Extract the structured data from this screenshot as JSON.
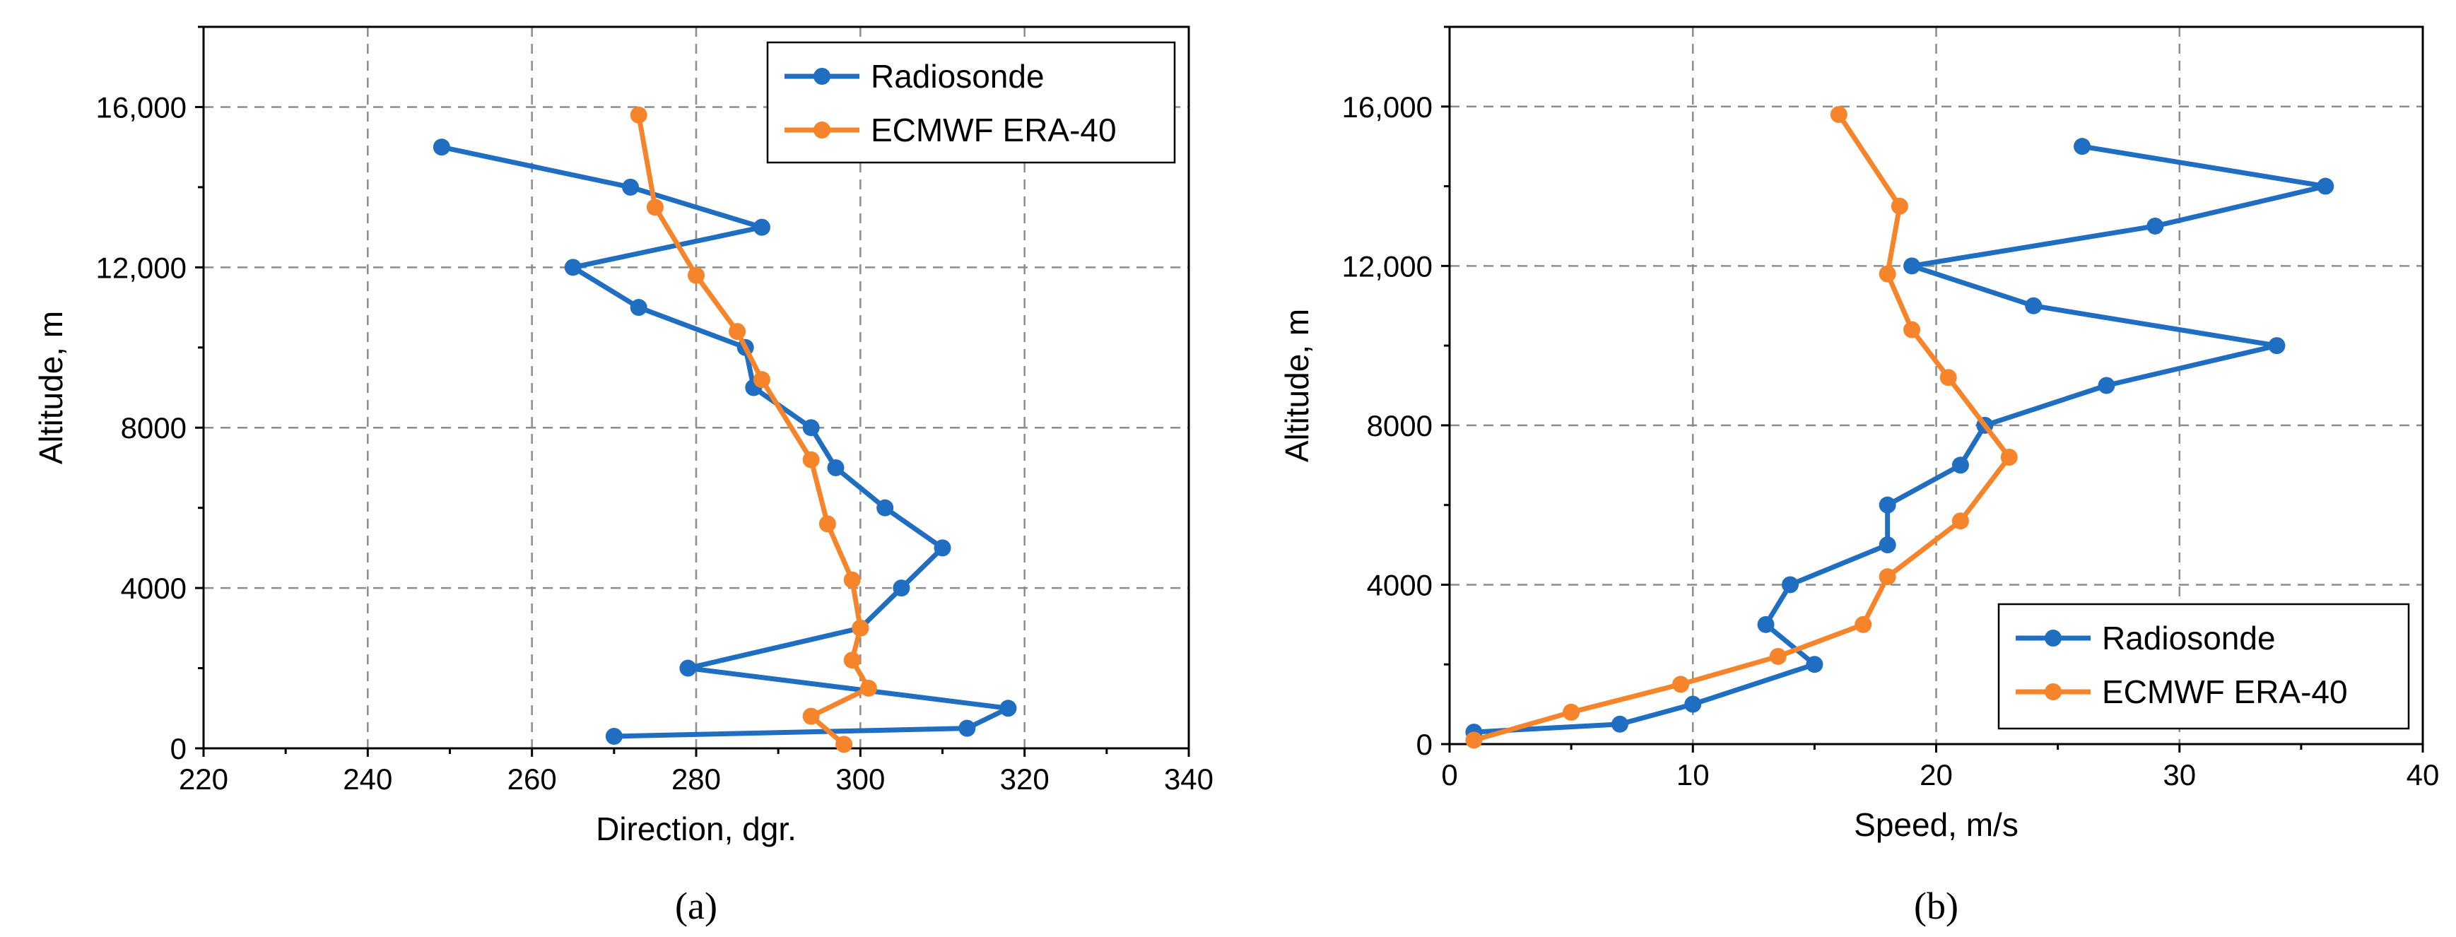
{
  "colors": {
    "radiosonde": "#1f6ec2",
    "ecmwf": "#f5842a"
  },
  "charts": [
    {
      "id": "a",
      "panel_label": "(a)",
      "chart_data": {
        "type": "line",
        "title": "",
        "xlabel": "Direction, dgr.",
        "ylabel": "Altitude, m",
        "xlim": [
          220,
          340
        ],
        "ylim": [
          0,
          18000
        ],
        "xticks": [
          220,
          240,
          260,
          280,
          300,
          320,
          340
        ],
        "xtick_labels": [
          "220",
          "240",
          "260",
          "280",
          "300",
          "320",
          "340"
        ],
        "yticks": [
          0,
          4000,
          8000,
          12000,
          16000
        ],
        "ytick_labels": [
          "0",
          "4000",
          "8000",
          "12,000",
          "16,000"
        ],
        "legend_position": "top-right",
        "series": [
          {
            "name": "Radiosonde",
            "points": [
              {
                "x": 270,
                "y": 300
              },
              {
                "x": 313,
                "y": 500
              },
              {
                "x": 318,
                "y": 1000
              },
              {
                "x": 279,
                "y": 2000
              },
              {
                "x": 300,
                "y": 3000
              },
              {
                "x": 305,
                "y": 4000
              },
              {
                "x": 310,
                "y": 5000
              },
              {
                "x": 303,
                "y": 6000
              },
              {
                "x": 297,
                "y": 7000
              },
              {
                "x": 294,
                "y": 8000
              },
              {
                "x": 287,
                "y": 9000
              },
              {
                "x": 286,
                "y": 10000
              },
              {
                "x": 273,
                "y": 11000
              },
              {
                "x": 265,
                "y": 12000
              },
              {
                "x": 288,
                "y": 13000
              },
              {
                "x": 272,
                "y": 14000
              },
              {
                "x": 249,
                "y": 15000
              }
            ]
          },
          {
            "name": "ECMWF ERA-40",
            "points": [
              {
                "x": 298,
                "y": 100
              },
              {
                "x": 294,
                "y": 800
              },
              {
                "x": 301,
                "y": 1500
              },
              {
                "x": 299,
                "y": 2200
              },
              {
                "x": 300,
                "y": 3000
              },
              {
                "x": 299,
                "y": 4200
              },
              {
                "x": 296,
                "y": 5600
              },
              {
                "x": 294,
                "y": 7200
              },
              {
                "x": 288,
                "y": 9200
              },
              {
                "x": 285,
                "y": 10400
              },
              {
                "x": 280,
                "y": 11800
              },
              {
                "x": 275,
                "y": 13500
              },
              {
                "x": 273,
                "y": 15800
              }
            ]
          }
        ]
      }
    },
    {
      "id": "b",
      "panel_label": "(b)",
      "chart_data": {
        "type": "line",
        "title": "",
        "xlabel": "Speed, m/s",
        "ylabel": "Altitude, m",
        "xlim": [
          0,
          40
        ],
        "ylim": [
          0,
          18000
        ],
        "xticks": [
          0,
          10,
          20,
          30,
          40
        ],
        "xtick_labels": [
          "0",
          "10",
          "20",
          "30",
          "40"
        ],
        "yticks": [
          0,
          4000,
          8000,
          12000,
          16000
        ],
        "ytick_labels": [
          "0",
          "4000",
          "8000",
          "12,000",
          "16,000"
        ],
        "legend_position": "bottom-right",
        "series": [
          {
            "name": "Radiosonde",
            "points": [
              {
                "x": 1,
                "y": 300
              },
              {
                "x": 7,
                "y": 500
              },
              {
                "x": 10,
                "y": 1000
              },
              {
                "x": 15,
                "y": 2000
              },
              {
                "x": 13,
                "y": 3000
              },
              {
                "x": 14,
                "y": 4000
              },
              {
                "x": 18,
                "y": 5000
              },
              {
                "x": 18,
                "y": 6000
              },
              {
                "x": 21,
                "y": 7000
              },
              {
                "x": 22,
                "y": 8000
              },
              {
                "x": 27,
                "y": 9000
              },
              {
                "x": 34,
                "y": 10000
              },
              {
                "x": 24,
                "y": 11000
              },
              {
                "x": 19,
                "y": 12000
              },
              {
                "x": 29,
                "y": 13000
              },
              {
                "x": 36,
                "y": 14000
              },
              {
                "x": 26,
                "y": 15000
              }
            ]
          },
          {
            "name": "ECMWF ERA-40",
            "points": [
              {
                "x": 1,
                "y": 100
              },
              {
                "x": 5,
                "y": 800
              },
              {
                "x": 9.5,
                "y": 1500
              },
              {
                "x": 13.5,
                "y": 2200
              },
              {
                "x": 17,
                "y": 3000
              },
              {
                "x": 18,
                "y": 4200
              },
              {
                "x": 21,
                "y": 5600
              },
              {
                "x": 23,
                "y": 7200
              },
              {
                "x": 20.5,
                "y": 9200
              },
              {
                "x": 19,
                "y": 10400
              },
              {
                "x": 18,
                "y": 11800
              },
              {
                "x": 18.5,
                "y": 13500
              },
              {
                "x": 16,
                "y": 15800
              }
            ]
          }
        ]
      }
    }
  ]
}
